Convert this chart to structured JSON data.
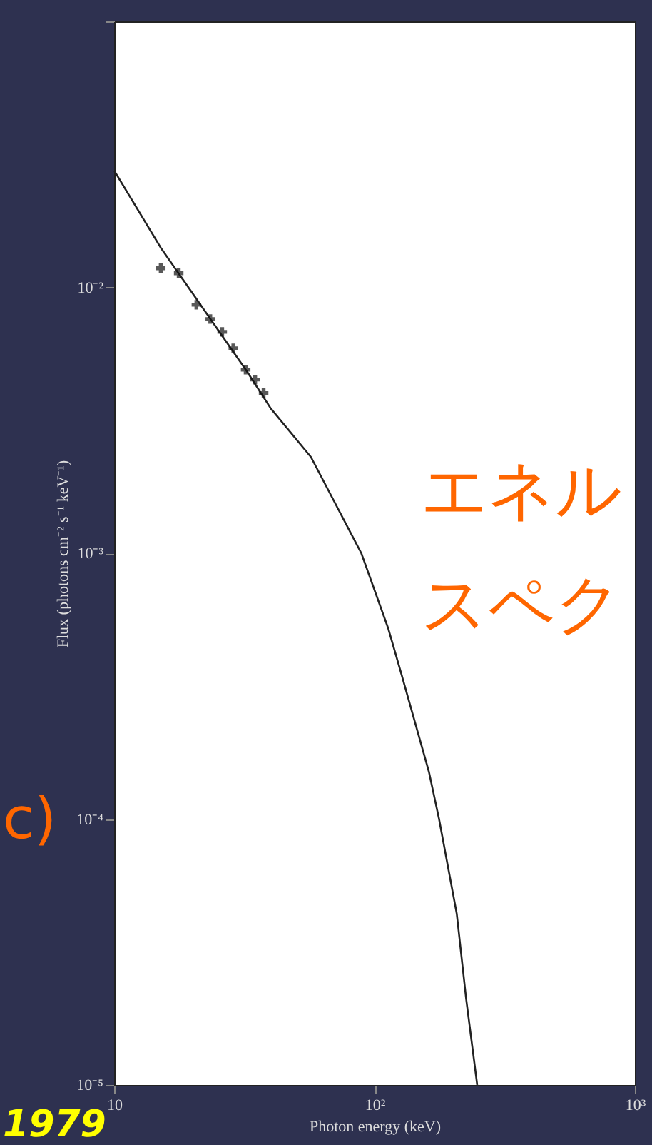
{
  "chart_data": {
    "type": "line",
    "xlabel": "Photon energy (keV)",
    "ylabel": "Flux (photons cm⁻² s⁻¹ keV⁻¹)",
    "log": "xy",
    "xlim": [
      10,
      1000
    ],
    "xticks": [
      {
        "value": 10,
        "label": "10"
      },
      {
        "value": 100,
        "label": "10²"
      },
      {
        "value": 1000,
        "label": "10³"
      }
    ],
    "ylim": [
      1e-05,
      0.1
    ],
    "yticks": [
      {
        "value": 1e-05,
        "label": "10⁻⁵"
      },
      {
        "value": 0.0001,
        "label": "10⁻⁴"
      },
      {
        "value": 0.001,
        "label": "10⁻³"
      },
      {
        "value": 0.01,
        "label": "10⁻²"
      },
      {
        "value": 0.1,
        "label": null
      }
    ],
    "grid": false,
    "series": [
      {
        "type": "line",
        "color": "#222222",
        "x": [
          10,
          15.1,
          32.5,
          40,
          57,
          89,
          113,
          127,
          162,
          177,
          207,
          225,
          248
        ],
        "values": [
          0.0275,
          0.0141,
          0.0048,
          0.0035,
          0.0023,
          0.001,
          0.00052,
          0.00035,
          0.00015,
          0.0001,
          4.4e-05,
          2.1e-05,
          1e-05
        ]
      },
      {
        "type": "scatter",
        "color": "#111111",
        "marker": "cross",
        "x": [
          15.1,
          17.7,
          20.7,
          23.4,
          26,
          28.7,
          32,
          34.8,
          37.5
        ],
        "values": [
          0.0118,
          0.0113,
          0.0086,
          0.0076,
          0.0068,
          0.0059,
          0.0049,
          0.0045,
          0.004
        ]
      }
    ],
    "annotations": [
      "エネル",
      "スペク",
      "c)",
      "1979"
    ]
  }
}
